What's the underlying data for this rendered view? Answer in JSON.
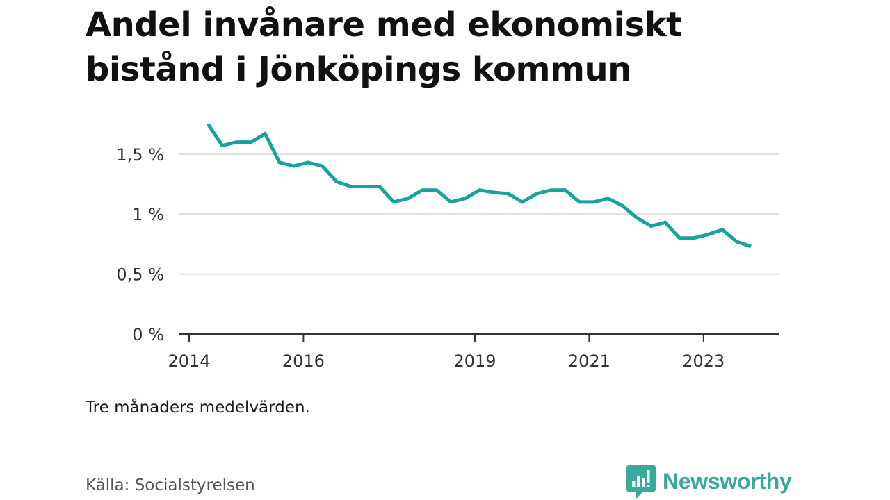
{
  "title": {
    "line1": "Andel invånare med ekonomiskt",
    "line2": "bistånd i Jönköpings kommun"
  },
  "note": "Tre månaders medelvärden.",
  "source": "Källa: Socialstyrelsen",
  "brand": {
    "name": "Newsworthy",
    "icon": "newsworthy-logo-icon",
    "color": "#3aa89a"
  },
  "colors": {
    "line": "#17a39a",
    "grid": "#dddddd",
    "axis": "#333333"
  },
  "chart_data": {
    "type": "line",
    "title": "Andel invånare med ekonomiskt bistånd i Jönköpings kommun",
    "xlabel": "",
    "ylabel": "",
    "ylim": [
      0,
      1.8
    ],
    "xlim": [
      2014,
      2024.75
    ],
    "grid": true,
    "yticks": [
      {
        "value": 0,
        "label": "0 %"
      },
      {
        "value": 0.5,
        "label": "0,5 %"
      },
      {
        "value": 1,
        "label": "1 %"
      },
      {
        "value": 1.5,
        "label": "1,5 %"
      }
    ],
    "xticks": [
      {
        "value": 2014,
        "label": "2014"
      },
      {
        "value": 2016,
        "label": "2016"
      },
      {
        "value": 2019,
        "label": "2019"
      },
      {
        "value": 2021,
        "label": "2021"
      },
      {
        "value": 2023,
        "label": "2023"
      }
    ],
    "series": [
      {
        "name": "Andel invånare med ekonomiskt bistånd",
        "x": [
          2014.33,
          2014.58,
          2014.83,
          2015.08,
          2015.33,
          2015.58,
          2015.83,
          2016.08,
          2016.33,
          2016.58,
          2016.83,
          2017.08,
          2017.33,
          2017.58,
          2017.83,
          2018.08,
          2018.33,
          2018.58,
          2018.83,
          2019.08,
          2019.33,
          2019.58,
          2019.83,
          2020.08,
          2020.33,
          2020.58,
          2020.83,
          2021.08,
          2021.33,
          2021.58,
          2021.83,
          2022.08,
          2022.33,
          2022.58,
          2022.83,
          2023.08,
          2023.33,
          2023.58,
          2023.83
        ],
        "values": [
          1.75,
          1.57,
          1.6,
          1.6,
          1.67,
          1.43,
          1.4,
          1.43,
          1.4,
          1.27,
          1.23,
          1.23,
          1.23,
          1.1,
          1.13,
          1.2,
          1.2,
          1.1,
          1.13,
          1.2,
          1.18,
          1.17,
          1.1,
          1.17,
          1.2,
          1.2,
          1.1,
          1.1,
          1.13,
          1.07,
          0.97,
          0.9,
          0.93,
          0.8,
          0.8,
          0.83,
          0.87,
          0.77,
          0.73
        ]
      }
    ]
  }
}
